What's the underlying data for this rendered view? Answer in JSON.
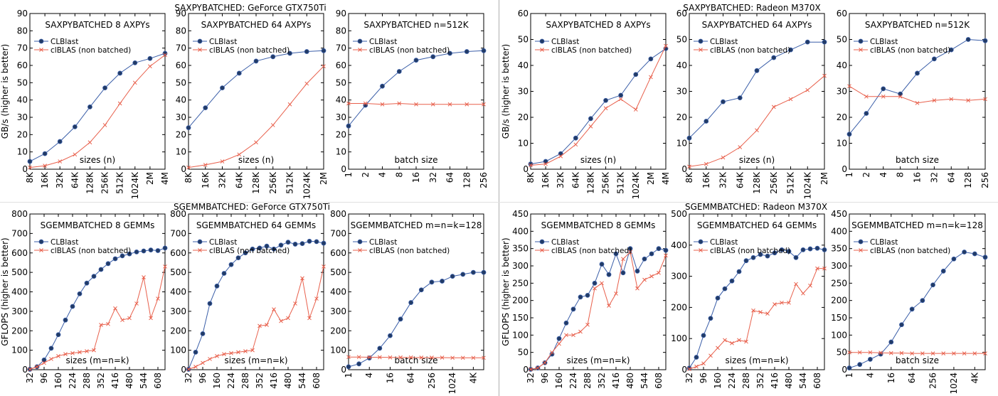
{
  "figure": {
    "group_titles": [
      "SAXPYBATCHED: GeForce GTX750Ti",
      "SAXPYBATCHED: Radeon M370X",
      "SGEMMBATCHED: GeForce GTX750Ti",
      "SGEMMBATCHED: Radeon M370X"
    ]
  },
  "colors": {
    "clblast": "#3a5ea8",
    "clblast_marker": "#223b66",
    "clblas": "#e8604c"
  },
  "chart_data": [
    {
      "type": "line",
      "group": 0,
      "title": "SAXPYBATCHED 8 AXPYs",
      "xlabel": "sizes (n)",
      "ylabel": "GB/s (higher is better)",
      "ylim": [
        0,
        90
      ],
      "yticks": [
        0,
        10,
        20,
        30,
        40,
        50,
        60,
        70,
        80,
        90
      ],
      "x": [
        "8K",
        "16K",
        "32K",
        "64K",
        "128K",
        "256K",
        "512K",
        "1024K",
        "2M",
        "4M"
      ],
      "xtick_idx": [
        0,
        1,
        2,
        3,
        4,
        5,
        6,
        7,
        8,
        9
      ],
      "series": [
        {
          "name": "CLBlast",
          "values": [
            4.5,
            9,
            16,
            24.5,
            36,
            47,
            55.5,
            61.5,
            64,
            67
          ]
        },
        {
          "name": "clBLAS (non batched)",
          "values": [
            1,
            2,
            4.5,
            8.5,
            15.5,
            25.5,
            38,
            50,
            59.5,
            66
          ]
        }
      ]
    },
    {
      "type": "line",
      "group": 0,
      "title": "SAXPYBATCHED 64 AXPYs",
      "xlabel": "sizes (n)",
      "ylabel": "",
      "ylim": [
        0,
        90
      ],
      "yticks": [
        0,
        10,
        20,
        30,
        40,
        50,
        60,
        70,
        80,
        90
      ],
      "x": [
        "8K",
        "16K",
        "32K",
        "64K",
        "128K",
        "256K",
        "512K",
        "1024K",
        "2M"
      ],
      "xtick_idx": [
        0,
        1,
        2,
        3,
        4,
        5,
        6,
        7,
        8
      ],
      "series": [
        {
          "name": "CLBlast",
          "values": [
            24,
            35.5,
            47,
            55.5,
            62.5,
            65,
            67,
            68,
            68.5
          ]
        },
        {
          "name": "clBLAS (non batched)",
          "values": [
            1,
            2.5,
            4.5,
            8.5,
            15.5,
            25.5,
            37.5,
            49.5,
            59.5
          ]
        }
      ]
    },
    {
      "type": "line",
      "group": 0,
      "title": "SAXPYBATCHED n=512K",
      "xlabel": "batch size",
      "ylabel": "",
      "ylim": [
        0,
        90
      ],
      "yticks": [
        0,
        10,
        20,
        30,
        40,
        50,
        60,
        70,
        80,
        90
      ],
      "x": [
        "1",
        "2",
        "4",
        "8",
        "16",
        "32",
        "64",
        "128",
        "256"
      ],
      "xtick_idx": [
        0,
        1,
        2,
        3,
        4,
        5,
        6,
        7,
        8
      ],
      "series": [
        {
          "name": "CLBlast",
          "values": [
            25,
            37,
            48,
            56.5,
            63,
            65,
            67,
            68,
            68.5
          ]
        },
        {
          "name": "clBLAS (non batched)",
          "values": [
            38,
            38,
            37.5,
            38,
            37.5,
            37.5,
            37.5,
            37.5,
            37.5
          ]
        }
      ]
    },
    {
      "type": "line",
      "group": 1,
      "title": "SAXPYBATCHED 8 AXPYs",
      "xlabel": "sizes (n)",
      "ylabel": "GB/s (higher is better)",
      "ylim": [
        0,
        60
      ],
      "yticks": [
        0,
        10,
        20,
        30,
        40,
        50,
        60
      ],
      "x": [
        "8K",
        "16K",
        "32K",
        "64K",
        "128K",
        "256K",
        "512K",
        "1024K",
        "2M",
        "4M"
      ],
      "xtick_idx": [
        0,
        1,
        2,
        3,
        4,
        5,
        6,
        7,
        8,
        9
      ],
      "series": [
        {
          "name": "CLBlast",
          "values": [
            2,
            3,
            6,
            12,
            19.5,
            26.5,
            28.5,
            36.5,
            42.5,
            46.5
          ]
        },
        {
          "name": "clBLAS (non batched)",
          "values": [
            1.5,
            2,
            5,
            9.5,
            16.5,
            23.5,
            27,
            23,
            35.5,
            47.5
          ]
        }
      ]
    },
    {
      "type": "line",
      "group": 1,
      "title": "SAXPYBATCHED 64 AXPYs",
      "xlabel": "sizes (n)",
      "ylabel": "",
      "ylim": [
        0,
        60
      ],
      "yticks": [
        0,
        10,
        20,
        30,
        40,
        50,
        60
      ],
      "x": [
        "8K",
        "16K",
        "32K",
        "64K",
        "128K",
        "256K",
        "512K",
        "1024K",
        "2M"
      ],
      "xtick_idx": [
        0,
        1,
        2,
        3,
        4,
        5,
        6,
        7,
        8
      ],
      "series": [
        {
          "name": "CLBlast",
          "values": [
            12,
            18.5,
            26,
            27.5,
            38,
            43,
            46,
            49,
            49
          ]
        },
        {
          "name": "clBLAS (non batched)",
          "values": [
            1,
            2,
            4.5,
            8.5,
            15,
            24,
            27,
            30.5,
            36
          ]
        }
      ]
    },
    {
      "type": "line",
      "group": 1,
      "title": "SAXPYBATCHED n=512K",
      "xlabel": "batch size",
      "ylabel": "",
      "ylim": [
        0,
        60
      ],
      "yticks": [
        0,
        10,
        20,
        30,
        40,
        50,
        60
      ],
      "x": [
        "1",
        "2",
        "4",
        "8",
        "16",
        "32",
        "64",
        "128",
        "256"
      ],
      "xtick_idx": [
        0,
        1,
        2,
        3,
        4,
        5,
        6,
        7,
        8
      ],
      "series": [
        {
          "name": "CLBlast",
          "values": [
            13.5,
            21.5,
            31,
            29,
            37,
            42.5,
            46,
            50,
            49.5
          ]
        },
        {
          "name": "clBLAS (non batched)",
          "values": [
            32,
            28,
            28,
            28,
            25.5,
            26.5,
            27,
            26.5,
            27
          ]
        }
      ]
    },
    {
      "type": "line",
      "group": 2,
      "title": "SGEMMBATCHED 8 GEMMs",
      "xlabel": "sizes (m=n=k)",
      "ylabel": "GFLOPS (higher is better)",
      "ylim": [
        0,
        800
      ],
      "yticks": [
        0,
        100,
        200,
        300,
        400,
        500,
        600,
        700,
        800
      ],
      "x": [
        "32",
        "64",
        "96",
        "128",
        "160",
        "192",
        "224",
        "256",
        "288",
        "320",
        "352",
        "384",
        "416",
        "448",
        "480",
        "512",
        "544",
        "576",
        "608",
        "640"
      ],
      "xtick_idx": [
        0,
        2,
        4,
        6,
        8,
        10,
        12,
        14,
        16,
        18
      ],
      "series": [
        {
          "name": "CLBlast",
          "values": [
            2,
            15,
            50,
            110,
            180,
            255,
            325,
            390,
            445,
            480,
            515,
            545,
            570,
            585,
            595,
            605,
            610,
            615,
            612,
            625
          ]
        },
        {
          "name": "clBLAS (non batched)",
          "values": [
            2,
            15,
            35,
            55,
            70,
            80,
            85,
            90,
            95,
            100,
            230,
            235,
            315,
            255,
            265,
            340,
            475,
            265,
            365,
            530
          ]
        }
      ]
    },
    {
      "type": "line",
      "group": 2,
      "title": "SGEMMBATCHED 64 GEMMs",
      "xlabel": "sizes (m=n=k)",
      "ylabel": "",
      "ylim": [
        0,
        800
      ],
      "yticks": [
        0,
        100,
        200,
        300,
        400,
        500,
        600,
        700,
        800
      ],
      "x": [
        "32",
        "64",
        "96",
        "128",
        "160",
        "192",
        "224",
        "256",
        "288",
        "320",
        "352",
        "384",
        "416",
        "448",
        "480",
        "512",
        "544",
        "576",
        "608",
        "640"
      ],
      "xtick_idx": [
        0,
        2,
        4,
        6,
        8,
        10,
        12,
        14,
        16,
        18
      ],
      "series": [
        {
          "name": "CLBlast",
          "values": [
            2,
            90,
            185,
            340,
            430,
            495,
            540,
            575,
            600,
            620,
            625,
            635,
            620,
            640,
            655,
            645,
            648,
            660,
            658,
            650
          ]
        },
        {
          "name": "clBLAS (non batched)",
          "values": [
            2,
            15,
            35,
            55,
            70,
            80,
            85,
            90,
            95,
            100,
            225,
            230,
            310,
            250,
            265,
            340,
            470,
            265,
            365,
            530
          ]
        }
      ]
    },
    {
      "type": "line",
      "group": 2,
      "title": "SGEMMBATCHED m=n=k=128",
      "xlabel": "batch size",
      "ylabel": "",
      "ylim": [
        0,
        800
      ],
      "yticks": [
        0,
        100,
        200,
        300,
        400,
        500,
        600,
        700,
        800
      ],
      "x": [
        "1",
        "2",
        "4",
        "8",
        "16",
        "32",
        "64",
        "128",
        "256",
        "512",
        "1024",
        "2048",
        "4K",
        "8K"
      ],
      "xtick_idx": [
        0,
        2,
        4,
        6,
        8,
        10,
        12
      ],
      "xtick_labels": [
        "1",
        "4",
        "16",
        "64",
        "256",
        "1024",
        "4K"
      ],
      "series": [
        {
          "name": "CLBlast",
          "values": [
            15,
            30,
            60,
            110,
            175,
            260,
            345,
            410,
            450,
            455,
            480,
            490,
            500,
            500
          ]
        },
        {
          "name": "clBLAS (non batched)",
          "values": [
            65,
            65,
            64,
            64,
            63,
            63,
            63,
            62,
            62,
            62,
            61,
            61,
            61,
            61
          ]
        }
      ]
    },
    {
      "type": "line",
      "group": 3,
      "title": "SGEMMBATCHED 8 GEMMs",
      "xlabel": "sizes (m=n=k)",
      "ylabel": "GFLOPS (higher is better)",
      "ylim": [
        0,
        450
      ],
      "yticks": [
        0,
        50,
        100,
        150,
        200,
        250,
        300,
        350,
        400,
        450
      ],
      "x": [
        "32",
        "64",
        "96",
        "128",
        "160",
        "192",
        "224",
        "256",
        "288",
        "320",
        "352",
        "384",
        "416",
        "448",
        "480",
        "512",
        "544",
        "576",
        "608",
        "640"
      ],
      "xtick_idx": [
        0,
        2,
        4,
        6,
        8,
        10,
        12,
        14,
        16,
        18
      ],
      "series": [
        {
          "name": "CLBlast",
          "values": [
            1,
            5,
            20,
            45,
            90,
            135,
            175,
            210,
            215,
            250,
            305,
            275,
            335,
            280,
            350,
            285,
            320,
            335,
            350,
            345
          ]
        },
        {
          "name": "clBLAS (non batched)",
          "values": [
            1,
            5,
            20,
            50,
            75,
            100,
            100,
            110,
            130,
            235,
            250,
            185,
            220,
            320,
            340,
            235,
            260,
            270,
            280,
            330
          ]
        }
      ]
    },
    {
      "type": "line",
      "group": 3,
      "title": "SGEMMBATCHED 64 GEMMs",
      "xlabel": "sizes (m=n=k)",
      "ylabel": "",
      "ylim": [
        0,
        500
      ],
      "yticks": [
        0,
        100,
        200,
        300,
        400,
        500
      ],
      "x": [
        "32",
        "64",
        "96",
        "128",
        "160",
        "192",
        "224",
        "256",
        "288",
        "320",
        "352",
        "384",
        "416",
        "448",
        "480",
        "512",
        "544",
        "576",
        "608",
        "640"
      ],
      "xtick_idx": [
        0,
        2,
        4,
        6,
        8,
        10,
        12,
        14,
        16,
        18
      ],
      "series": [
        {
          "name": "CLBlast",
          "values": [
            5,
            40,
            110,
            165,
            230,
            260,
            285,
            315,
            350,
            360,
            370,
            365,
            375,
            385,
            380,
            360,
            385,
            388,
            390,
            385
          ]
        },
        {
          "name": "clBLAS (non batched)",
          "values": [
            2,
            10,
            20,
            45,
            70,
            95,
            85,
            95,
            90,
            190,
            185,
            180,
            210,
            215,
            215,
            275,
            245,
            270,
            325,
            325
          ]
        }
      ]
    },
    {
      "type": "line",
      "group": 3,
      "title": "SGEMMBATCHED m=n=k=128",
      "xlabel": "batch size",
      "ylabel": "",
      "ylim": [
        0,
        450
      ],
      "yticks": [
        0,
        50,
        100,
        150,
        200,
        250,
        300,
        350,
        400,
        450
      ],
      "x": [
        "1",
        "2",
        "4",
        "8",
        "16",
        "32",
        "64",
        "128",
        "256",
        "512",
        "1024",
        "2048",
        "4K",
        "8K"
      ],
      "xtick_idx": [
        0,
        2,
        4,
        6,
        8,
        10,
        12
      ],
      "xtick_labels": [
        "1",
        "4",
        "16",
        "64",
        "256",
        "1024",
        "4K"
      ],
      "series": [
        {
          "name": "CLBlast",
          "values": [
            5,
            15,
            30,
            45,
            80,
            130,
            175,
            200,
            245,
            285,
            320,
            340,
            335,
            325
          ]
        },
        {
          "name": "clBLAS (non batched)",
          "values": [
            50,
            50,
            50,
            49,
            48,
            48,
            47,
            47,
            47,
            47,
            47,
            47,
            47,
            47
          ]
        }
      ]
    }
  ]
}
